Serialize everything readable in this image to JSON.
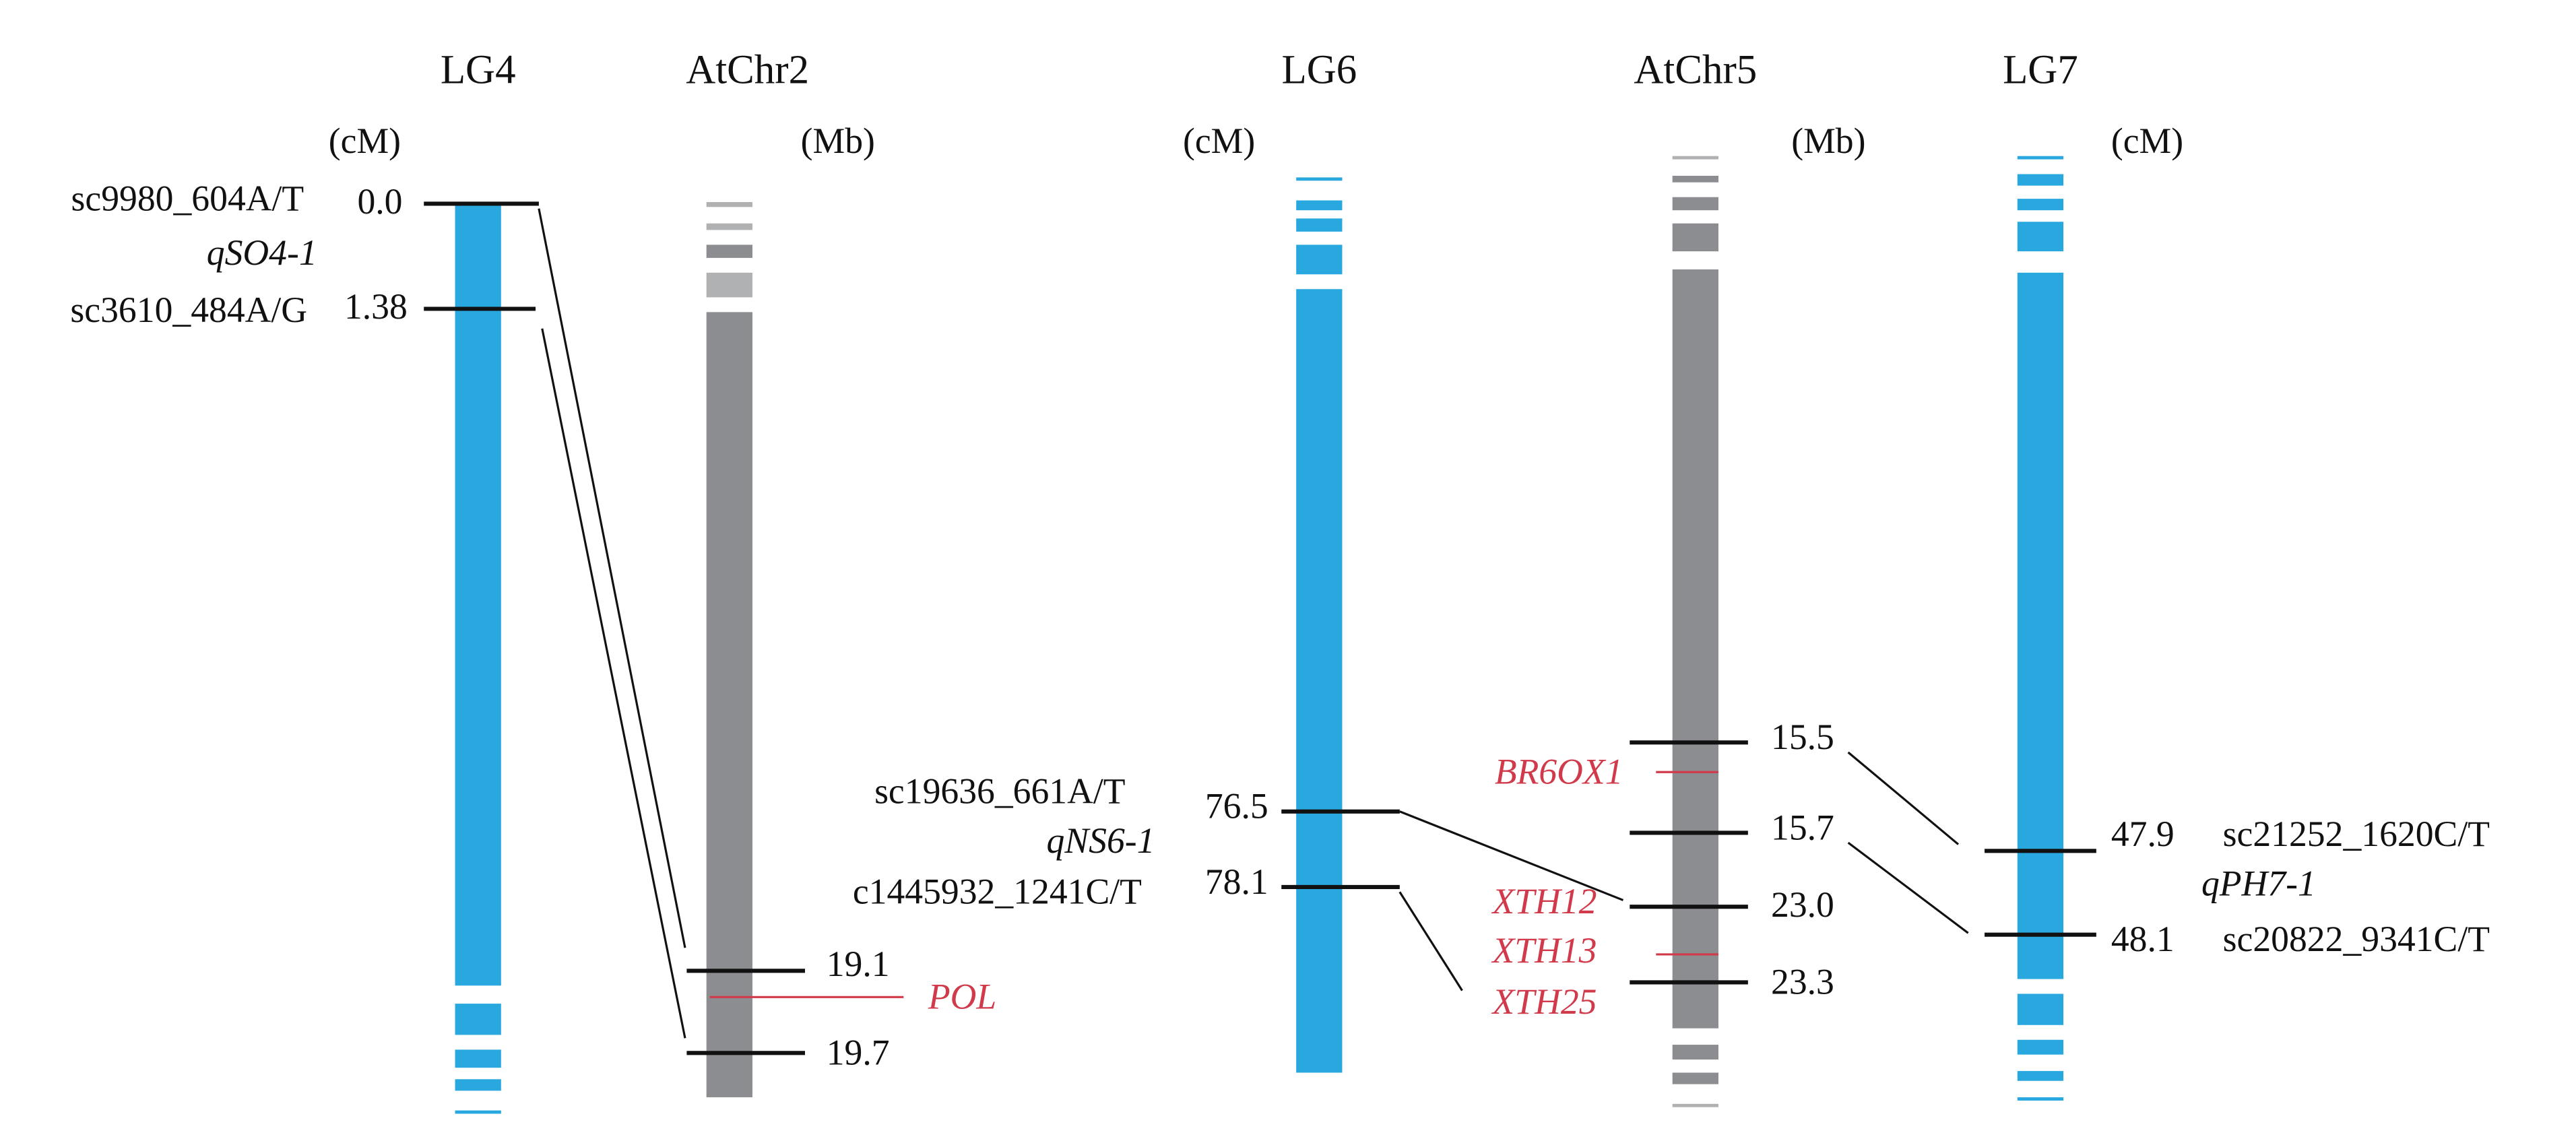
{
  "maps": [
    {
      "title": "LG4",
      "unit": "(cM)",
      "qtl": "qSO4-1",
      "markers": [
        {
          "name": "sc9980_604A/T",
          "position": "0.0"
        },
        {
          "name": "sc3610_484A/G",
          "position": "1.38"
        }
      ]
    },
    {
      "title": "AtChr2",
      "unit": "(Mb)",
      "positions": [
        "19.1",
        "19.7"
      ],
      "genes": [
        "POL"
      ]
    },
    {
      "title": "LG6",
      "unit": "(cM)",
      "qtl": "qNS6-1",
      "markers": [
        {
          "name": "sc19636_661A/T",
          "position": "76.5"
        },
        {
          "name": "c1445932_1241C/T",
          "position": "78.1"
        }
      ]
    },
    {
      "title": "AtChr5",
      "unit": "(Mb)",
      "positions": [
        "15.5",
        "15.7",
        "23.0",
        "23.3"
      ],
      "genes": [
        "BR6OX1",
        "XTH12",
        "XTH13",
        "XTH25"
      ]
    },
    {
      "title": "LG7",
      "unit": "(cM)",
      "qtl": "qPH7-1",
      "markers": [
        {
          "name": "sc21252_1620C/T",
          "position": "47.9"
        },
        {
          "name": "sc20822_9341C/T",
          "position": "48.1"
        }
      ]
    }
  ]
}
